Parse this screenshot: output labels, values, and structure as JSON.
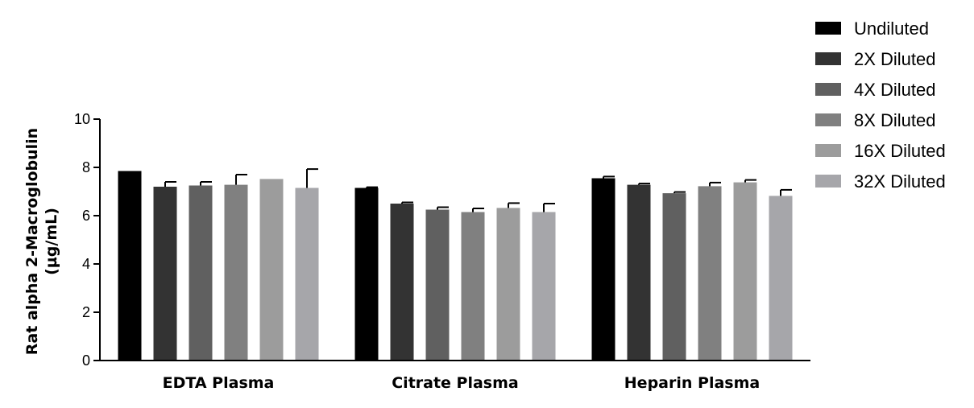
{
  "chart_data": {
    "type": "bar",
    "title": "",
    "xlabel": "",
    "ylabel_lines": [
      "Rat alpha 2-Macroglobulin",
      "(µg/mL)"
    ],
    "ylim": [
      0,
      10
    ],
    "yticks": [
      0,
      2,
      4,
      6,
      8,
      10
    ],
    "categories": [
      "EDTA Plasma",
      "Citrate Plasma",
      "Heparin Plasma"
    ],
    "legend_position": "top-right",
    "grid": false,
    "series": [
      {
        "name": "Undiluted",
        "color": "#000000",
        "values": [
          7.85,
          7.15,
          7.55
        ],
        "errors": [
          0.0,
          0.03,
          0.07
        ]
      },
      {
        "name": "2X Diluted",
        "color": "#333333",
        "values": [
          7.2,
          6.5,
          7.28
        ],
        "errors": [
          0.2,
          0.05,
          0.05
        ]
      },
      {
        "name": "4X Diluted",
        "color": "#606060",
        "values": [
          7.25,
          6.25,
          6.93
        ],
        "errors": [
          0.15,
          0.1,
          0.05
        ]
      },
      {
        "name": "8X Diluted",
        "color": "#808080",
        "values": [
          7.28,
          6.15,
          7.22
        ],
        "errors": [
          0.42,
          0.15,
          0.15
        ]
      },
      {
        "name": "16X Diluted",
        "color": "#9c9c9c",
        "values": [
          7.52,
          6.32,
          7.38
        ],
        "errors": [
          0.0,
          0.2,
          0.1
        ]
      },
      {
        "name": "32X Diluted",
        "color": "#a6a6aa",
        "values": [
          7.15,
          6.15,
          6.82
        ],
        "errors": [
          0.78,
          0.35,
          0.25
        ]
      }
    ]
  }
}
